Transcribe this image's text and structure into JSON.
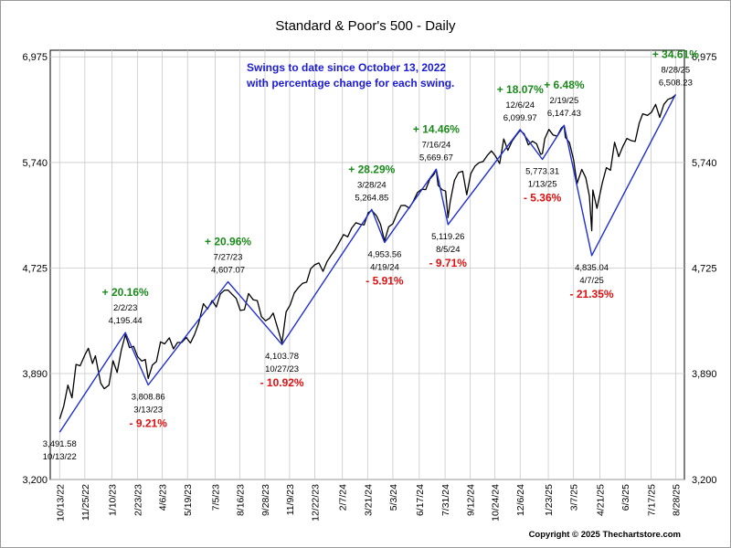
{
  "chart_data": {
    "type": "line",
    "title": "Standard & Poor's 500 - Daily",
    "note_lines": [
      "Swings to date since October 13, 2022",
      "with percentage change for each swing."
    ],
    "copyright": "Copyright © 2025 Thechartstore.com",
    "x_range": [
      "2022-09-27",
      "2025-09-12"
    ],
    "y_range": [
      3200,
      7060
    ],
    "y_scale": "log",
    "y_ticks": [
      {
        "value": 3200,
        "label": "3,200"
      },
      {
        "value": 3890,
        "label": "3,890"
      },
      {
        "value": 4725,
        "label": "4,725"
      },
      {
        "value": 5740,
        "label": "5,740"
      },
      {
        "value": 6975,
        "label": "6,975"
      }
    ],
    "x_ticks": [
      {
        "date": "2022-10-13",
        "label": "10/13/22"
      },
      {
        "date": "2022-11-25",
        "label": "11/25/22"
      },
      {
        "date": "2023-01-10",
        "label": "1/10/23"
      },
      {
        "date": "2023-02-23",
        "label": "2/23/23"
      },
      {
        "date": "2023-04-06",
        "label": "4/6/23"
      },
      {
        "date": "2023-05-19",
        "label": "5/19/23"
      },
      {
        "date": "2023-07-05",
        "label": "7/5/23"
      },
      {
        "date": "2023-08-16",
        "label": "8/16/23"
      },
      {
        "date": "2023-09-28",
        "label": "9/28/23"
      },
      {
        "date": "2023-11-09",
        "label": "11/9/23"
      },
      {
        "date": "2023-12-22",
        "label": "12/22/23"
      },
      {
        "date": "2024-02-07",
        "label": "2/7/24"
      },
      {
        "date": "2024-03-21",
        "label": "3/21/24"
      },
      {
        "date": "2024-05-03",
        "label": "5/3/24"
      },
      {
        "date": "2024-06-17",
        "label": "6/17/24"
      },
      {
        "date": "2024-07-31",
        "label": "7/31/24"
      },
      {
        "date": "2024-09-12",
        "label": "9/12/24"
      },
      {
        "date": "2024-10-24",
        "label": "10/24/24"
      },
      {
        "date": "2024-12-06",
        "label": "12/6/24"
      },
      {
        "date": "2025-01-23",
        "label": "1/23/25"
      },
      {
        "date": "2025-03-07",
        "label": "3/7/25"
      },
      {
        "date": "2025-04-21",
        "label": "4/21/25"
      },
      {
        "date": "2025-06-03",
        "label": "6/3/25"
      },
      {
        "date": "2025-07-17",
        "label": "7/17/25"
      },
      {
        "date": "2025-08-28",
        "label": "8/28/25"
      }
    ],
    "grid": true,
    "series": [
      {
        "type": "line",
        "color": "#000000",
        "points": [
          [
            "2022-10-13",
            3577
          ],
          [
            "2022-10-20",
            3665
          ],
          [
            "2022-10-27",
            3808
          ],
          [
            "2022-11-03",
            3720
          ],
          [
            "2022-11-10",
            3956
          ],
          [
            "2022-11-17",
            3946
          ],
          [
            "2022-11-25",
            4026
          ],
          [
            "2022-12-01",
            4076
          ],
          [
            "2022-12-08",
            3963
          ],
          [
            "2022-12-13",
            4019
          ],
          [
            "2022-12-22",
            3822
          ],
          [
            "2022-12-28",
            3783
          ],
          [
            "2023-01-05",
            3808
          ],
          [
            "2023-01-12",
            3983
          ],
          [
            "2023-01-19",
            3898
          ],
          [
            "2023-01-26",
            4060
          ],
          [
            "2023-02-02",
            4179
          ],
          [
            "2023-02-09",
            4081
          ],
          [
            "2023-02-16",
            4090
          ],
          [
            "2023-02-23",
            4012
          ],
          [
            "2023-03-02",
            3981
          ],
          [
            "2023-03-08",
            3992
          ],
          [
            "2023-03-13",
            3855
          ],
          [
            "2023-03-20",
            3951
          ],
          [
            "2023-03-27",
            3977
          ],
          [
            "2023-04-03",
            4124
          ],
          [
            "2023-04-10",
            4109
          ],
          [
            "2023-04-18",
            4155
          ],
          [
            "2023-04-25",
            4071
          ],
          [
            "2023-05-02",
            4119
          ],
          [
            "2023-05-09",
            4119
          ],
          [
            "2023-05-17",
            4158
          ],
          [
            "2023-05-24",
            4115
          ],
          [
            "2023-05-31",
            4180
          ],
          [
            "2023-06-07",
            4268
          ],
          [
            "2023-06-15",
            4425
          ],
          [
            "2023-06-22",
            4381
          ],
          [
            "2023-06-30",
            4450
          ],
          [
            "2023-07-07",
            4398
          ],
          [
            "2023-07-14",
            4505
          ],
          [
            "2023-07-21",
            4536
          ],
          [
            "2023-07-27",
            4537
          ],
          [
            "2023-08-03",
            4502
          ],
          [
            "2023-08-10",
            4468
          ],
          [
            "2023-08-17",
            4370
          ],
          [
            "2023-08-24",
            4376
          ],
          [
            "2023-08-31",
            4508
          ],
          [
            "2023-09-08",
            4457
          ],
          [
            "2023-09-15",
            4450
          ],
          [
            "2023-09-22",
            4320
          ],
          [
            "2023-09-29",
            4288
          ],
          [
            "2023-10-06",
            4308
          ],
          [
            "2023-10-12",
            4349
          ],
          [
            "2023-10-20",
            4224
          ],
          [
            "2023-10-27",
            4117
          ],
          [
            "2023-11-03",
            4358
          ],
          [
            "2023-11-10",
            4415
          ],
          [
            "2023-11-17",
            4514
          ],
          [
            "2023-11-24",
            4559
          ],
          [
            "2023-12-01",
            4594
          ],
          [
            "2023-12-08",
            4604
          ],
          [
            "2023-12-15",
            4719
          ],
          [
            "2023-12-22",
            4754
          ],
          [
            "2023-12-29",
            4770
          ],
          [
            "2024-01-05",
            4697
          ],
          [
            "2024-01-12",
            4783
          ],
          [
            "2024-01-19",
            4839
          ],
          [
            "2024-01-26",
            4890
          ],
          [
            "2024-02-02",
            4958
          ],
          [
            "2024-02-09",
            5026
          ],
          [
            "2024-02-16",
            5005
          ],
          [
            "2024-02-23",
            5088
          ],
          [
            "2024-03-01",
            5137
          ],
          [
            "2024-03-08",
            5123
          ],
          [
            "2024-03-15",
            5117
          ],
          [
            "2024-03-22",
            5234
          ],
          [
            "2024-03-28",
            5254
          ],
          [
            "2024-04-05",
            5204
          ],
          [
            "2024-04-12",
            5123
          ],
          [
            "2024-04-19",
            4967
          ],
          [
            "2024-04-26",
            5099
          ],
          [
            "2024-05-03",
            5127
          ],
          [
            "2024-05-10",
            5222
          ],
          [
            "2024-05-17",
            5303
          ],
          [
            "2024-05-24",
            5304
          ],
          [
            "2024-05-31",
            5277
          ],
          [
            "2024-06-07",
            5346
          ],
          [
            "2024-06-14",
            5431
          ],
          [
            "2024-06-21",
            5464
          ],
          [
            "2024-06-28",
            5460
          ],
          [
            "2024-07-05",
            5567
          ],
          [
            "2024-07-12",
            5615
          ],
          [
            "2024-07-16",
            5667
          ],
          [
            "2024-07-19",
            5505
          ],
          [
            "2024-07-26",
            5459
          ],
          [
            "2024-08-01",
            5446
          ],
          [
            "2024-08-05",
            5186
          ],
          [
            "2024-08-09",
            5344
          ],
          [
            "2024-08-16",
            5554
          ],
          [
            "2024-08-23",
            5634
          ],
          [
            "2024-08-30",
            5648
          ],
          [
            "2024-09-06",
            5408
          ],
          [
            "2024-09-13",
            5626
          ],
          [
            "2024-09-20",
            5702
          ],
          [
            "2024-09-27",
            5738
          ],
          [
            "2024-10-04",
            5751
          ],
          [
            "2024-10-11",
            5815
          ],
          [
            "2024-10-18",
            5864
          ],
          [
            "2024-10-25",
            5808
          ],
          [
            "2024-11-01",
            5729
          ],
          [
            "2024-11-08",
            5995
          ],
          [
            "2024-11-15",
            5870
          ],
          [
            "2024-11-22",
            5969
          ],
          [
            "2024-11-29",
            6032
          ],
          [
            "2024-12-06",
            6090
          ],
          [
            "2024-12-13",
            6051
          ],
          [
            "2024-12-20",
            5930
          ],
          [
            "2024-12-27",
            5970
          ],
          [
            "2025-01-03",
            5942
          ],
          [
            "2025-01-10",
            5827
          ],
          [
            "2025-01-13",
            5836
          ],
          [
            "2025-01-17",
            5997
          ],
          [
            "2025-01-24",
            6101
          ],
          [
            "2025-01-31",
            6040
          ],
          [
            "2025-02-07",
            6026
          ],
          [
            "2025-02-14",
            6114
          ],
          [
            "2025-02-19",
            6144
          ],
          [
            "2025-02-21",
            6013
          ],
          [
            "2025-02-28",
            5955
          ],
          [
            "2025-03-07",
            5770
          ],
          [
            "2025-03-13",
            5521
          ],
          [
            "2025-03-21",
            5667
          ],
          [
            "2025-03-28",
            5580
          ],
          [
            "2025-04-03",
            5396
          ],
          [
            "2025-04-07",
            5062
          ],
          [
            "2025-04-09",
            5457
          ],
          [
            "2025-04-16",
            5275
          ],
          [
            "2025-04-25",
            5525
          ],
          [
            "2025-05-02",
            5686
          ],
          [
            "2025-05-09",
            5659
          ],
          [
            "2025-05-16",
            5958
          ],
          [
            "2025-05-23",
            5803
          ],
          [
            "2025-05-30",
            5912
          ],
          [
            "2025-06-06",
            6000
          ],
          [
            "2025-06-13",
            5977
          ],
          [
            "2025-06-20",
            5967
          ],
          [
            "2025-06-27",
            6173
          ],
          [
            "2025-07-03",
            6279
          ],
          [
            "2025-07-11",
            6260
          ],
          [
            "2025-07-18",
            6297
          ],
          [
            "2025-07-25",
            6389
          ],
          [
            "2025-08-01",
            6238
          ],
          [
            "2025-08-08",
            6389
          ],
          [
            "2025-08-15",
            6449
          ],
          [
            "2025-08-22",
            6467
          ],
          [
            "2025-08-28",
            6502
          ]
        ]
      },
      {
        "type": "line",
        "color": "#1f2fd0",
        "points": [
          [
            "2022-10-13",
            3491.58
          ],
          [
            "2023-02-02",
            4195.44
          ],
          [
            "2023-03-13",
            3808.86
          ],
          [
            "2023-07-27",
            4607.07
          ],
          [
            "2023-10-27",
            4103.78
          ],
          [
            "2024-03-28",
            5264.85
          ],
          [
            "2024-04-19",
            4953.56
          ],
          [
            "2024-07-16",
            5669.67
          ],
          [
            "2024-08-05",
            5119.26
          ],
          [
            "2024-12-06",
            6099.97
          ],
          [
            "2025-01-13",
            5773.31
          ],
          [
            "2025-02-19",
            6147.43
          ],
          [
            "2025-04-07",
            4835.04
          ],
          [
            "2025-08-28",
            6508.23
          ]
        ]
      }
    ],
    "annotations": [
      {
        "date": "2022-10-13",
        "value": 3491.58,
        "lines": [
          "3,491.58",
          "10/13/22"
        ],
        "pct": "",
        "pos": "below"
      },
      {
        "date": "2023-02-02",
        "value": 4195.44,
        "lines": [
          "2/2/23",
          "4,195.44"
        ],
        "pct": "+ 20.16%",
        "pos": "above"
      },
      {
        "date": "2023-03-13",
        "value": 3808.86,
        "lines": [
          "3,808.86",
          "3/13/23"
        ],
        "pct": "- 9.21%",
        "pos": "below"
      },
      {
        "date": "2023-07-27",
        "value": 4607.07,
        "lines": [
          "7/27/23",
          "4,607.07"
        ],
        "pct": "+ 20.96%",
        "pos": "above"
      },
      {
        "date": "2023-10-27",
        "value": 4103.78,
        "lines": [
          "4,103.78",
          "10/27/23"
        ],
        "pct": "- 10.92%",
        "pos": "below"
      },
      {
        "date": "2024-03-28",
        "value": 5264.85,
        "lines": [
          "3/28/24",
          "5,264.85"
        ],
        "pct": "+ 28.29%",
        "pos": "above"
      },
      {
        "date": "2024-04-19",
        "value": 4953.56,
        "lines": [
          "4,953.56",
          "4/19/24"
        ],
        "pct": "- 5.91%",
        "pos": "below"
      },
      {
        "date": "2024-07-16",
        "value": 5669.67,
        "lines": [
          "7/16/24",
          "5,669.67"
        ],
        "pct": "+ 14.46%",
        "pos": "above"
      },
      {
        "date": "2024-08-05",
        "value": 5119.26,
        "lines": [
          "5,119.26",
          "8/5/24"
        ],
        "pct": "- 9.71%",
        "pos": "below"
      },
      {
        "date": "2024-12-06",
        "value": 6099.97,
        "lines": [
          "12/6/24",
          "6,099.97"
        ],
        "pct": "+ 18.07%",
        "pos": "above"
      },
      {
        "date": "2025-01-13",
        "value": 5773.31,
        "lines": [
          "5,773.31",
          "1/13/25"
        ],
        "pct": "- 5.36%",
        "pos": "below"
      },
      {
        "date": "2025-02-19",
        "value": 6147.43,
        "lines": [
          "2/19/25",
          "6,147.43"
        ],
        "pct": "+ 6.48%",
        "pos": "above"
      },
      {
        "date": "2025-04-07",
        "value": 4835.04,
        "lines": [
          "4,835.04",
          "4/7/25"
        ],
        "pct": "- 21.35%",
        "pos": "below"
      },
      {
        "date": "2025-08-28",
        "value": 6508.23,
        "lines": [
          "8/28/25",
          "6,508.23"
        ],
        "pct": "+ 34.61%",
        "pos": "above"
      }
    ]
  }
}
